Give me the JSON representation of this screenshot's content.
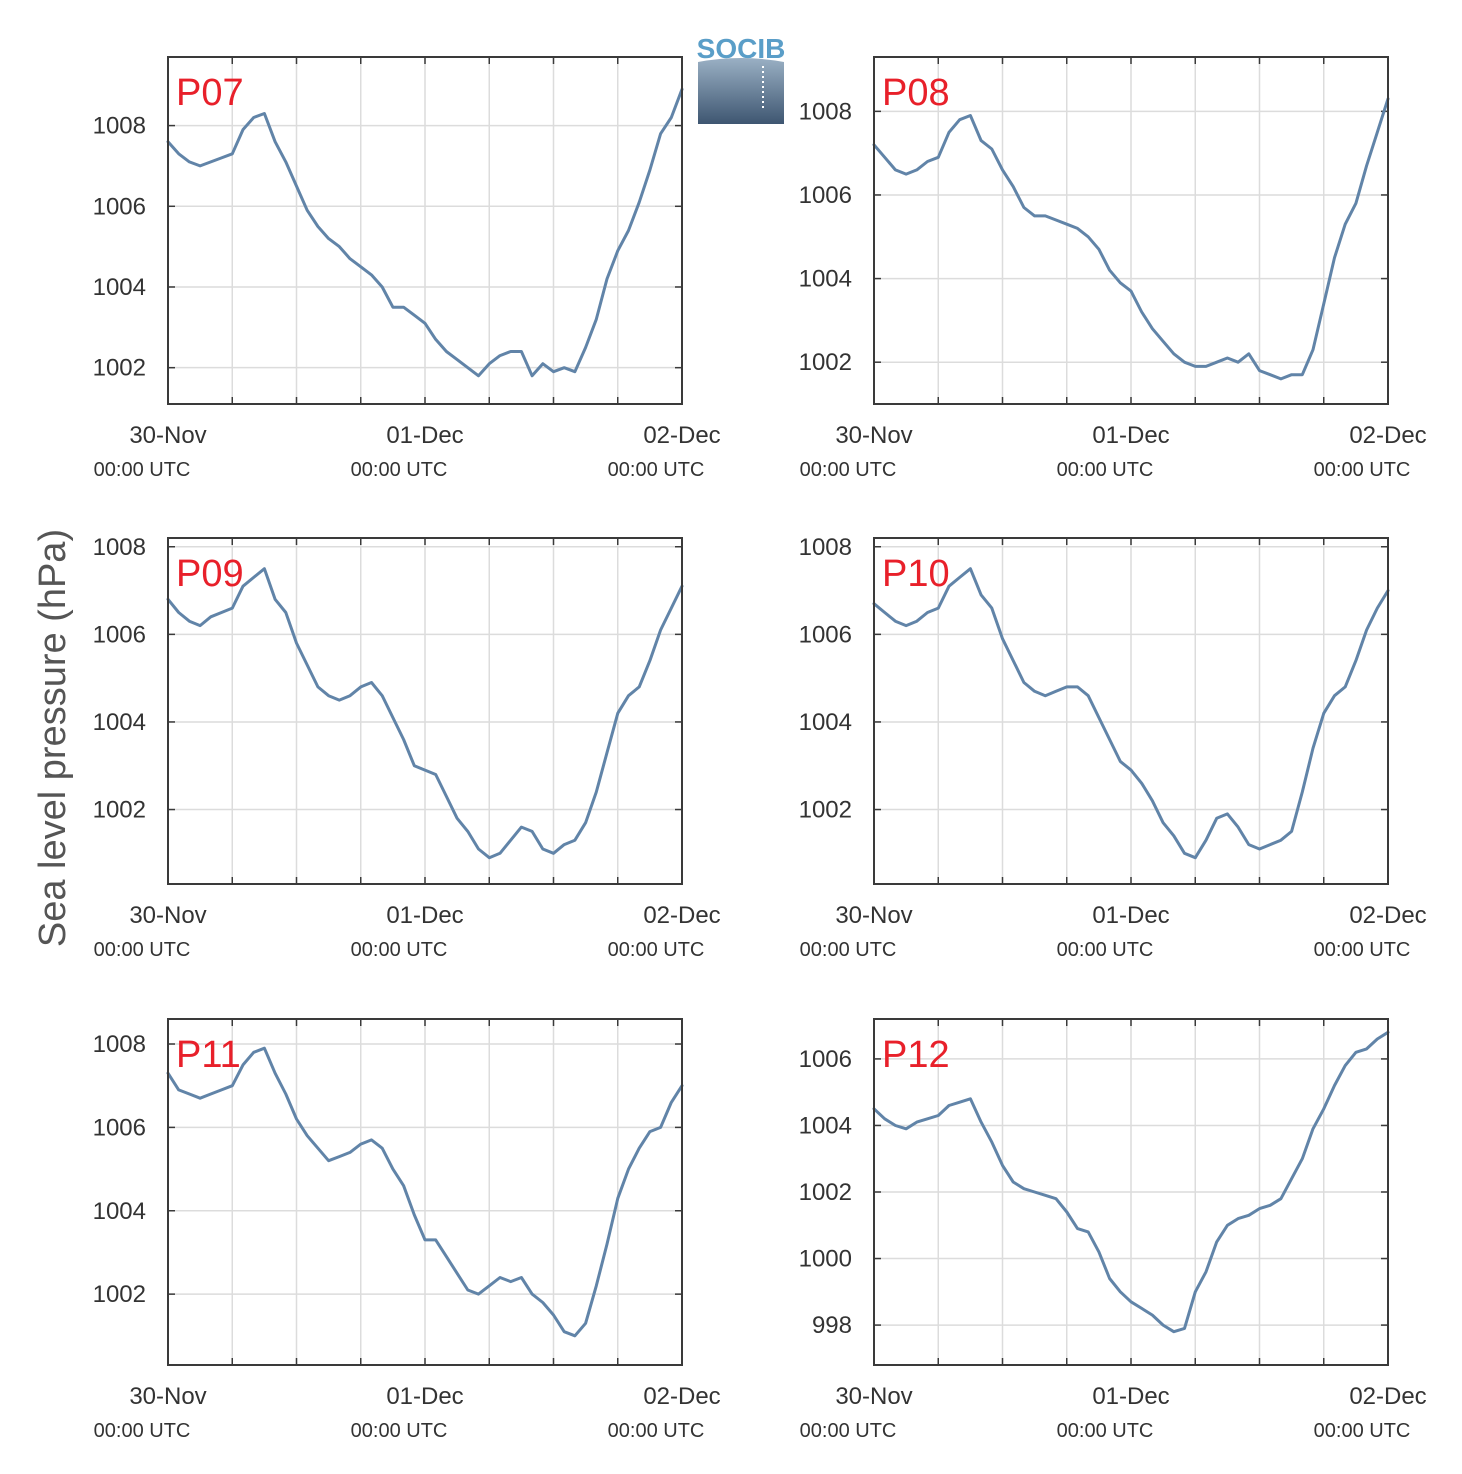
{
  "figure": {
    "ylabel": "Sea level pressure (hPa)",
    "logo_text": "SOCIB",
    "label_color": "#e8202a",
    "line_color": "#6184a8",
    "logo_color": "#5a9ec8"
  },
  "chart_data": [
    {
      "type": "line",
      "panel_label": "P07",
      "xlabel": "",
      "ylabel": "Sea level pressure (hPa)",
      "x_unit": "hours since 30-Nov 00:00 UTC",
      "xlim": [
        0,
        48
      ],
      "x_ticks": [
        {
          "date": "30-Nov",
          "time": "00:00 UTC",
          "x": 0
        },
        {
          "date": "01-Dec",
          "time": "00:00 UTC",
          "x": 24
        },
        {
          "date": "02-Dec",
          "time": "00:00 UTC",
          "x": 48
        }
      ],
      "ylim": [
        1001.1,
        1009.7
      ],
      "yticks": [
        1002,
        1004,
        1006,
        1008
      ],
      "grid": true,
      "series": [
        {
          "x": [
            0,
            1,
            2,
            3,
            4,
            5,
            6,
            7,
            8,
            9,
            10,
            11,
            12,
            13,
            14,
            15,
            16,
            17,
            18,
            19,
            20,
            21,
            22,
            23,
            24,
            25,
            26,
            27,
            28,
            29,
            30,
            31,
            32,
            33,
            34,
            35,
            36,
            37,
            38,
            39,
            40,
            41,
            42,
            43,
            44,
            45,
            46,
            47,
            48
          ],
          "y": [
            1007.6,
            1007.3,
            1007.1,
            1007.0,
            1007.1,
            1007.2,
            1007.3,
            1007.9,
            1008.2,
            1008.3,
            1007.6,
            1007.1,
            1006.5,
            1005.9,
            1005.5,
            1005.2,
            1005.0,
            1004.7,
            1004.5,
            1004.3,
            1004.0,
            1003.5,
            1003.5,
            1003.3,
            1003.1,
            1002.7,
            1002.4,
            1002.2,
            1002.0,
            1001.8,
            1002.1,
            1002.3,
            1002.4,
            1002.4,
            1001.8,
            1002.1,
            1001.9,
            1002.0,
            1001.9,
            1002.5,
            1003.2,
            1004.2,
            1004.9,
            1005.4,
            1006.1,
            1006.9,
            1007.8,
            1008.2,
            1008.9
          ]
        }
      ]
    },
    {
      "type": "line",
      "panel_label": "P08",
      "xlabel": "",
      "ylabel": "Sea level pressure (hPa)",
      "x_unit": "hours since 30-Nov 00:00 UTC",
      "xlim": [
        0,
        48
      ],
      "x_ticks": [
        {
          "date": "30-Nov",
          "time": "00:00 UTC",
          "x": 0
        },
        {
          "date": "01-Dec",
          "time": "00:00 UTC",
          "x": 24
        },
        {
          "date": "02-Dec",
          "time": "00:00 UTC",
          "x": 48
        }
      ],
      "ylim": [
        1001.0,
        1009.3
      ],
      "yticks": [
        1002,
        1004,
        1006,
        1008
      ],
      "grid": true,
      "series": [
        {
          "x": [
            0,
            1,
            2,
            3,
            4,
            5,
            6,
            7,
            8,
            9,
            10,
            11,
            12,
            13,
            14,
            15,
            16,
            17,
            18,
            19,
            20,
            21,
            22,
            23,
            24,
            25,
            26,
            27,
            28,
            29,
            30,
            31,
            32,
            33,
            34,
            35,
            36,
            37,
            38,
            39,
            40,
            41,
            42,
            43,
            44,
            45,
            46,
            47,
            48
          ],
          "y": [
            1007.2,
            1006.9,
            1006.6,
            1006.5,
            1006.6,
            1006.8,
            1006.9,
            1007.5,
            1007.8,
            1007.9,
            1007.3,
            1007.1,
            1006.6,
            1006.2,
            1005.7,
            1005.5,
            1005.5,
            1005.4,
            1005.3,
            1005.2,
            1005.0,
            1004.7,
            1004.2,
            1003.9,
            1003.7,
            1003.2,
            1002.8,
            1002.5,
            1002.2,
            1002.0,
            1001.9,
            1001.9,
            1002.0,
            1002.1,
            1002.0,
            1002.2,
            1001.8,
            1001.7,
            1001.6,
            1001.7,
            1001.7,
            1002.3,
            1003.4,
            1004.5,
            1005.3,
            1005.8,
            1006.7,
            1007.5,
            1008.3
          ]
        }
      ]
    },
    {
      "type": "line",
      "panel_label": "P09",
      "xlabel": "",
      "ylabel": "Sea level pressure (hPa)",
      "x_unit": "hours since 30-Nov 00:00 UTC",
      "xlim": [
        0,
        48
      ],
      "x_ticks": [
        {
          "date": "30-Nov",
          "time": "00:00 UTC",
          "x": 0
        },
        {
          "date": "01-Dec",
          "time": "00:00 UTC",
          "x": 24
        },
        {
          "date": "02-Dec",
          "time": "00:00 UTC",
          "x": 48
        }
      ],
      "ylim": [
        1000.3,
        1008.2
      ],
      "yticks": [
        1002,
        1004,
        1006,
        1008
      ],
      "grid": true,
      "series": [
        {
          "x": [
            0,
            1,
            2,
            3,
            4,
            5,
            6,
            7,
            8,
            9,
            10,
            11,
            12,
            13,
            14,
            15,
            16,
            17,
            18,
            19,
            20,
            21,
            22,
            23,
            24,
            25,
            26,
            27,
            28,
            29,
            30,
            31,
            32,
            33,
            34,
            35,
            36,
            37,
            38,
            39,
            40,
            41,
            42,
            43,
            44,
            45,
            46,
            47,
            48
          ],
          "y": [
            1006.8,
            1006.5,
            1006.3,
            1006.2,
            1006.4,
            1006.5,
            1006.6,
            1007.1,
            1007.3,
            1007.5,
            1006.8,
            1006.5,
            1005.8,
            1005.3,
            1004.8,
            1004.6,
            1004.5,
            1004.6,
            1004.8,
            1004.9,
            1004.6,
            1004.1,
            1003.6,
            1003.0,
            1002.9,
            1002.8,
            1002.3,
            1001.8,
            1001.5,
            1001.1,
            1000.9,
            1001.0,
            1001.3,
            1001.6,
            1001.5,
            1001.1,
            1001.0,
            1001.2,
            1001.3,
            1001.7,
            1002.4,
            1003.3,
            1004.2,
            1004.6,
            1004.8,
            1005.4,
            1006.1,
            1006.6,
            1007.1
          ]
        }
      ]
    },
    {
      "type": "line",
      "panel_label": "P10",
      "xlabel": "",
      "ylabel": "Sea level pressure (hPa)",
      "x_unit": "hours since 30-Nov 00:00 UTC",
      "xlim": [
        0,
        48
      ],
      "x_ticks": [
        {
          "date": "30-Nov",
          "time": "00:00 UTC",
          "x": 0
        },
        {
          "date": "01-Dec",
          "time": "00:00 UTC",
          "x": 24
        },
        {
          "date": "02-Dec",
          "time": "00:00 UTC",
          "x": 48
        }
      ],
      "ylim": [
        1000.3,
        1008.2
      ],
      "yticks": [
        1002,
        1004,
        1006,
        1008
      ],
      "grid": true,
      "series": [
        {
          "x": [
            0,
            1,
            2,
            3,
            4,
            5,
            6,
            7,
            8,
            9,
            10,
            11,
            12,
            13,
            14,
            15,
            16,
            17,
            18,
            19,
            20,
            21,
            22,
            23,
            24,
            25,
            26,
            27,
            28,
            29,
            30,
            31,
            32,
            33,
            34,
            35,
            36,
            37,
            38,
            39,
            40,
            41,
            42,
            43,
            44,
            45,
            46,
            47,
            48
          ],
          "y": [
            1006.7,
            1006.5,
            1006.3,
            1006.2,
            1006.3,
            1006.5,
            1006.6,
            1007.1,
            1007.3,
            1007.5,
            1006.9,
            1006.6,
            1005.9,
            1005.4,
            1004.9,
            1004.7,
            1004.6,
            1004.7,
            1004.8,
            1004.8,
            1004.6,
            1004.1,
            1003.6,
            1003.1,
            1002.9,
            1002.6,
            1002.2,
            1001.7,
            1001.4,
            1001.0,
            1000.9,
            1001.3,
            1001.8,
            1001.9,
            1001.6,
            1001.2,
            1001.1,
            1001.2,
            1001.3,
            1001.5,
            1002.4,
            1003.4,
            1004.2,
            1004.6,
            1004.8,
            1005.4,
            1006.1,
            1006.6,
            1007.0
          ]
        }
      ]
    },
    {
      "type": "line",
      "panel_label": "P11",
      "xlabel": "",
      "ylabel": "Sea level pressure (hPa)",
      "x_unit": "hours since 30-Nov 00:00 UTC",
      "xlim": [
        0,
        48
      ],
      "x_ticks": [
        {
          "date": "30-Nov",
          "time": "00:00 UTC",
          "x": 0
        },
        {
          "date": "01-Dec",
          "time": "00:00 UTC",
          "x": 24
        },
        {
          "date": "02-Dec",
          "time": "00:00 UTC",
          "x": 48
        }
      ],
      "ylim": [
        1000.3,
        1008.6
      ],
      "yticks": [
        1002,
        1004,
        1006,
        1008
      ],
      "grid": true,
      "series": [
        {
          "x": [
            0,
            1,
            2,
            3,
            4,
            5,
            6,
            7,
            8,
            9,
            10,
            11,
            12,
            13,
            14,
            15,
            16,
            17,
            18,
            19,
            20,
            21,
            22,
            23,
            24,
            25,
            26,
            27,
            28,
            29,
            30,
            31,
            32,
            33,
            34,
            35,
            36,
            37,
            38,
            39,
            40,
            41,
            42,
            43,
            44,
            45,
            46,
            47,
            48
          ],
          "y": [
            1007.3,
            1006.9,
            1006.8,
            1006.7,
            1006.8,
            1006.9,
            1007.0,
            1007.5,
            1007.8,
            1007.9,
            1007.3,
            1006.8,
            1006.2,
            1005.8,
            1005.5,
            1005.2,
            1005.3,
            1005.4,
            1005.6,
            1005.7,
            1005.5,
            1005.0,
            1004.6,
            1003.9,
            1003.3,
            1003.3,
            1002.9,
            1002.5,
            1002.1,
            1002.0,
            1002.2,
            1002.4,
            1002.3,
            1002.4,
            1002.0,
            1001.8,
            1001.5,
            1001.1,
            1001.0,
            1001.3,
            1002.2,
            1003.2,
            1004.3,
            1005.0,
            1005.5,
            1005.9,
            1006.0,
            1006.6,
            1007.0
          ]
        }
      ]
    },
    {
      "type": "line",
      "panel_label": "P12",
      "xlabel": "",
      "ylabel": "Sea level pressure (hPa)",
      "x_unit": "hours since 30-Nov 00:00 UTC",
      "xlim": [
        0,
        48
      ],
      "x_ticks": [
        {
          "date": "30-Nov",
          "time": "00:00 UTC",
          "x": 0
        },
        {
          "date": "01-Dec",
          "time": "00:00 UTC",
          "x": 24
        },
        {
          "date": "02-Dec",
          "time": "00:00 UTC",
          "x": 48
        }
      ],
      "ylim": [
        996.8,
        1007.2
      ],
      "yticks": [
        998,
        1000,
        1002,
        1004,
        1006
      ],
      "grid": true,
      "series": [
        {
          "x": [
            0,
            1,
            2,
            3,
            4,
            5,
            6,
            7,
            8,
            9,
            10,
            11,
            12,
            13,
            14,
            15,
            16,
            17,
            18,
            19,
            20,
            21,
            22,
            23,
            24,
            25,
            26,
            27,
            28,
            29,
            30,
            31,
            32,
            33,
            34,
            35,
            36,
            37,
            38,
            39,
            40,
            41,
            42,
            43,
            44,
            45,
            46,
            47,
            48
          ],
          "y": [
            1004.5,
            1004.2,
            1004.0,
            1003.9,
            1004.1,
            1004.2,
            1004.3,
            1004.6,
            1004.7,
            1004.8,
            1004.1,
            1003.5,
            1002.8,
            1002.3,
            1002.1,
            1002.0,
            1001.9,
            1001.8,
            1001.4,
            1000.9,
            1000.8,
            1000.2,
            999.4,
            999.0,
            998.7,
            998.5,
            998.3,
            998.0,
            997.8,
            997.9,
            999.0,
            999.6,
            1000.5,
            1001.0,
            1001.2,
            1001.3,
            1001.5,
            1001.6,
            1001.8,
            1002.4,
            1003.0,
            1003.9,
            1004.5,
            1005.2,
            1005.8,
            1006.2,
            1006.3,
            1006.6,
            1006.8
          ]
        }
      ]
    }
  ]
}
